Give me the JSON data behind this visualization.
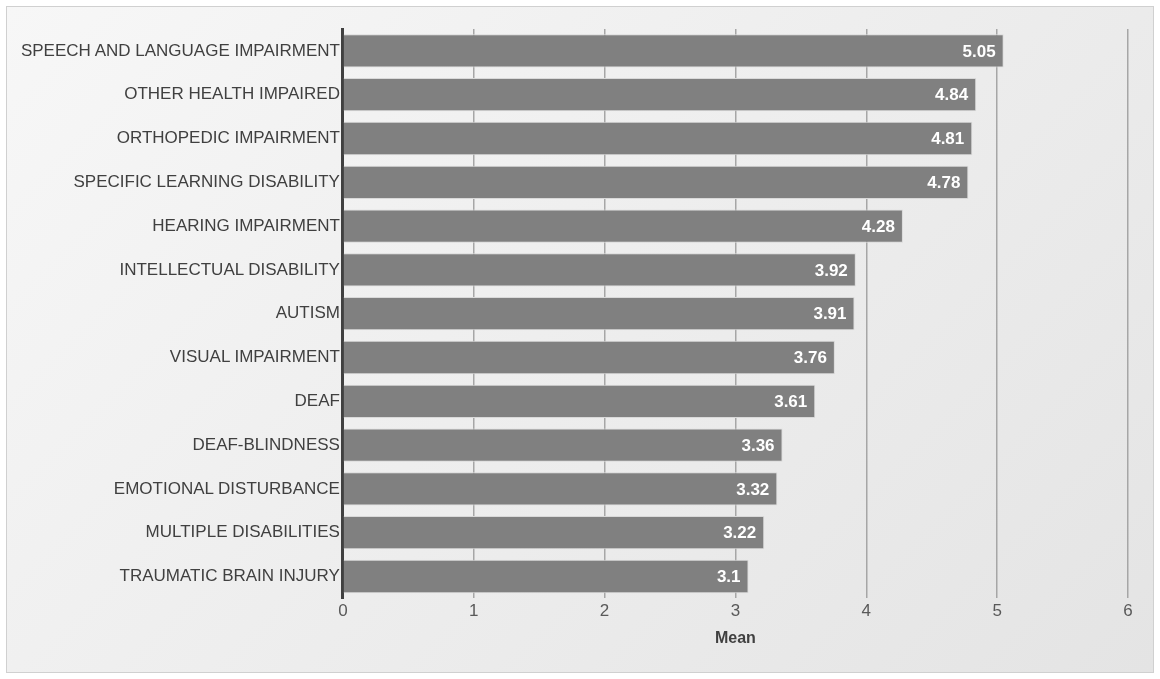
{
  "chart_data": {
    "type": "bar",
    "orientation": "horizontal",
    "xlabel": "Mean",
    "categories": [
      "SPEECH AND LANGUAGE IMPAIRMENT",
      "OTHER HEALTH IMPAIRED",
      "ORTHOPEDIC IMPAIRMENT",
      "SPECIFIC LEARNING DISABILITY",
      "HEARING IMPAIRMENT",
      "INTELLECTUAL DISABILITY",
      "AUTISM",
      "VISUAL IMPAIRMENT",
      "DEAF",
      "DEAF-BLINDNESS",
      "EMOTIONAL DISTURBANCE",
      "MULTIPLE DISABILITIES",
      "TRAUMATIC BRAIN INJURY"
    ],
    "values": [
      5.05,
      4.84,
      4.81,
      4.78,
      4.28,
      3.92,
      3.91,
      3.76,
      3.61,
      3.36,
      3.32,
      3.22,
      3.1
    ],
    "color": "#808080",
    "xlim": [
      0,
      6
    ],
    "xticks": [
      0,
      1,
      2,
      3,
      4,
      5,
      6
    ],
    "grid": "x",
    "data_labels": true
  }
}
